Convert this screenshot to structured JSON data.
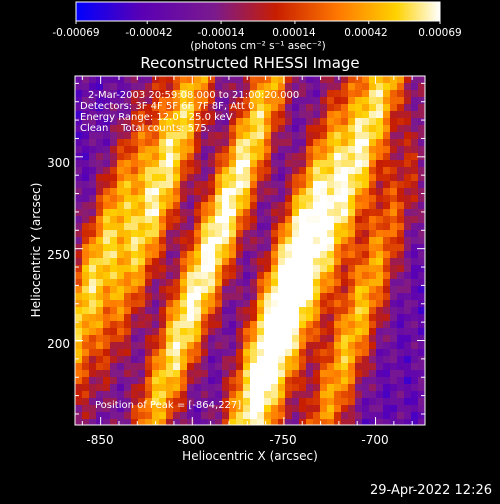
{
  "colorbar": {
    "tick_labels": [
      "-0.00069",
      "-0.00042",
      "-0.00014",
      "0.00014",
      "0.00042",
      "0.00069"
    ],
    "min": -0.00069,
    "max": 0.00069,
    "unit_label": "(photons cm⁻² s⁻¹ asec⁻²)",
    "colors": [
      "#0000ff",
      "#5a00b4",
      "#7b1a8e",
      "#c81e00",
      "#ff7800",
      "#ffd200",
      "#ffffff"
    ]
  },
  "chart_data": {
    "type": "heatmap",
    "title": "Reconstructed RHESSI Image",
    "xlabel": "Heliocentric X (arcsec)",
    "ylabel": "Heliocentric Y (arcsec)",
    "xlim": [
      -864,
      -673
    ],
    "ylim": [
      154,
      344
    ],
    "xticks": [
      -850,
      -800,
      -750,
      -700
    ],
    "yticks": [
      200,
      250,
      300
    ],
    "annotations": [
      "2-Mar-2003 20:59:08.000 to 21:00:20.000",
      "Detectors: 3F 4F 5F 6F 7F 8F, Att 0",
      "Energy Range: 12.0 - 25.0 keV",
      "Clean    Total counts: 575."
    ],
    "peak_label": "Position of Peak = [-864,227]",
    "stripes": [
      {
        "x_center": -855,
        "y_center": 232,
        "intensity": 0.85
      },
      {
        "x_center": -815,
        "y_center": 290,
        "intensity": 0.95
      },
      {
        "x_center": -810,
        "y_center": 195,
        "intensity": 0.75
      },
      {
        "x_center": -770,
        "y_center": 300,
        "intensity": 0.8
      },
      {
        "x_center": -748,
        "y_center": 240,
        "intensity": 0.95
      },
      {
        "x_center": -760,
        "y_center": 170,
        "intensity": 0.75
      },
      {
        "x_center": -705,
        "y_center": 310,
        "intensity": 0.9
      },
      {
        "x_center": -712,
        "y_center": 205,
        "intensity": 0.8
      }
    ]
  },
  "timestamp": "29-Apr-2022 12:26"
}
